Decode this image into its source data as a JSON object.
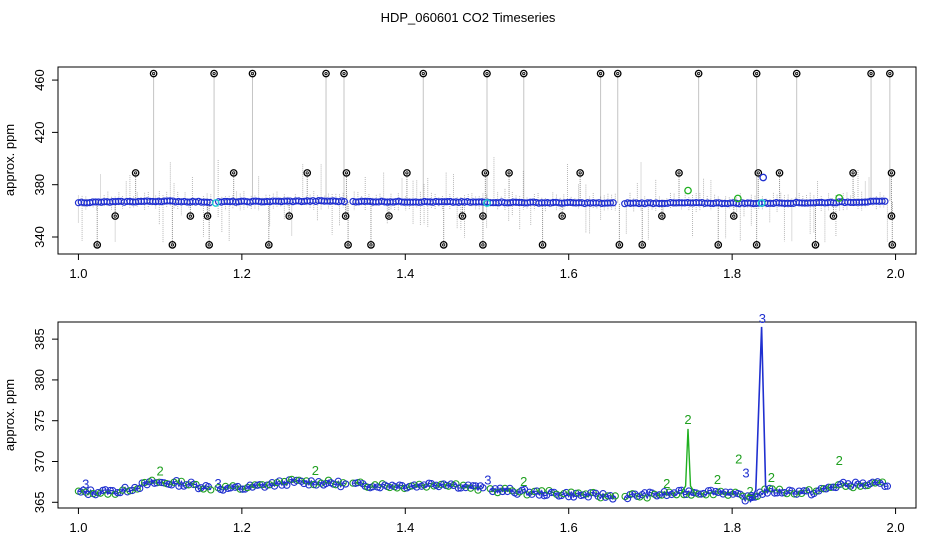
{
  "chart_data": [
    {
      "type": "scatter",
      "title": "HDP_060601  CO2 Timeseries",
      "xlabel": "",
      "ylabel": "approx. ppm",
      "xlim": [
        0.975,
        2.025
      ],
      "ylim": [
        327,
        470
      ],
      "x_ticks": [
        "1.0",
        "1.2",
        "1.4",
        "1.6",
        "1.8",
        "2.0"
      ],
      "y_ticks": [
        "340",
        "380",
        "420",
        "460"
      ],
      "baseline": [
        [
          1.0,
          366.4
        ],
        [
          1.1,
          367.4
        ],
        [
          1.16,
          366.8
        ],
        [
          1.3,
          367.5
        ],
        [
          1.33,
          367.2
        ],
        [
          1.5,
          366.6
        ],
        [
          1.66,
          365.8
        ],
        [
          1.75,
          366.0
        ],
        [
          1.82,
          365.8
        ],
        [
          1.9,
          366.2
        ],
        [
          1.99,
          367.2
        ]
      ],
      "gaps": [
        [
          1.163,
          1.169
        ],
        [
          1.329,
          1.335
        ],
        [
          1.658,
          1.667
        ]
      ],
      "outliers_high": [
        1.092,
        1.166,
        1.213,
        1.303,
        1.325,
        1.422,
        1.5,
        1.545,
        1.639,
        1.66,
        1.759,
        1.83,
        1.879,
        1.97,
        1.993
      ],
      "outliers_mid": [
        1.07,
        1.19,
        1.28,
        1.328,
        1.402,
        1.498,
        1.527,
        1.614,
        1.735,
        1.832,
        1.858,
        1.948,
        1.995
      ],
      "outliers_low": [
        1.023,
        1.115,
        1.16,
        1.233,
        1.33,
        1.358,
        1.447,
        1.495,
        1.568,
        1.662,
        1.69,
        1.783,
        1.83,
        1.902,
        1.996
      ],
      "outliers_minor": [
        1.045,
        1.137,
        1.158,
        1.258,
        1.327,
        1.38,
        1.47,
        1.495,
        1.592,
        1.714,
        1.802,
        1.924,
        1.995
      ],
      "green_points": [
        [
          1.746,
          375.5
        ],
        [
          1.807,
          369.5
        ],
        [
          1.931,
          369.8
        ]
      ],
      "cyan_points": [
        [
          1.168,
          366.0
        ],
        [
          1.5,
          366.0
        ],
        [
          1.836,
          366.0
        ]
      ],
      "blue_points": [
        [
          1.838,
          385.5
        ]
      ]
    },
    {
      "type": "line",
      "title": "",
      "xlabel": "",
      "ylabel": "approx. ppm",
      "xlim": [
        0.975,
        2.025
      ],
      "ylim": [
        364.3,
        387.1
      ],
      "x_ticks": [
        "1.0",
        "1.2",
        "1.4",
        "1.6",
        "1.8",
        "2.0"
      ],
      "y_ticks": [
        "365",
        "370",
        "375",
        "380",
        "385"
      ],
      "baseline": [
        [
          1.0,
          366.2
        ],
        [
          1.05,
          366.3
        ],
        [
          1.09,
          367.4
        ],
        [
          1.13,
          367.3
        ],
        [
          1.16,
          366.8
        ],
        [
          1.2,
          366.7
        ],
        [
          1.26,
          367.5
        ],
        [
          1.3,
          367.4
        ],
        [
          1.33,
          367.2
        ],
        [
          1.4,
          367.0
        ],
        [
          1.45,
          367.3
        ],
        [
          1.49,
          366.7
        ],
        [
          1.55,
          366.2
        ],
        [
          1.6,
          366.0
        ],
        [
          1.66,
          365.7
        ],
        [
          1.7,
          365.9
        ],
        [
          1.75,
          366.2
        ],
        [
          1.79,
          366.3
        ],
        [
          1.82,
          365.4
        ],
        [
          1.84,
          366.4
        ],
        [
          1.9,
          366.2
        ],
        [
          1.93,
          367.1
        ],
        [
          1.99,
          367.2
        ]
      ],
      "gaps": [
        [
          1.163,
          1.169
        ],
        [
          1.329,
          1.335
        ],
        [
          1.497,
          1.501
        ],
        [
          1.658,
          1.667
        ]
      ],
      "blue_spike": [
        [
          1.822,
          365.0
        ],
        [
          1.829,
          366.5
        ],
        [
          1.836,
          386.5
        ],
        [
          1.841,
          367.0
        ],
        [
          1.844,
          366.2
        ]
      ],
      "green_spike": [
        [
          1.738,
          366.2
        ],
        [
          1.743,
          367.0
        ],
        [
          1.746,
          374.0
        ],
        [
          1.749,
          367.0
        ],
        [
          1.754,
          366.2
        ]
      ],
      "labels_green": [
        {
          "x": 1.746,
          "y": 374.2,
          "t": "2"
        },
        {
          "x": 1.782,
          "y": 366.9,
          "t": "2"
        },
        {
          "x": 1.808,
          "y": 369.4,
          "t": "2"
        },
        {
          "x": 1.822,
          "y": 365.4,
          "t": "2"
        },
        {
          "x": 1.931,
          "y": 369.2,
          "t": "2"
        },
        {
          "x": 1.1,
          "y": 367.9,
          "t": "2"
        },
        {
          "x": 1.29,
          "y": 368.0,
          "t": "2"
        },
        {
          "x": 1.545,
          "y": 366.6,
          "t": "2"
        },
        {
          "x": 1.72,
          "y": 366.4,
          "t": "2"
        },
        {
          "x": 1.848,
          "y": 367.1,
          "t": "2"
        }
      ],
      "labels_blue": [
        {
          "x": 1.837,
          "y": 386.6,
          "t": "3"
        },
        {
          "x": 1.817,
          "y": 367.7,
          "t": "3"
        },
        {
          "x": 1.824,
          "y": 364.8,
          "t": "3"
        },
        {
          "x": 1.009,
          "y": 366.3,
          "t": "3"
        },
        {
          "x": 1.171,
          "y": 366.4,
          "t": "3"
        },
        {
          "x": 1.501,
          "y": 366.8,
          "t": "3"
        }
      ]
    }
  ]
}
